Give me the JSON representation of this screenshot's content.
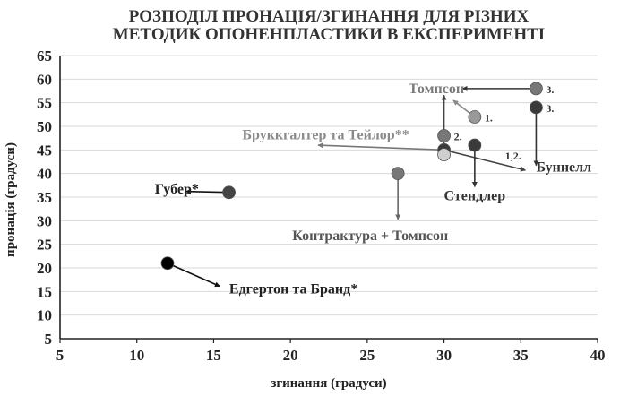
{
  "chart_data": {
    "type": "scatter",
    "title": [
      "РОЗПОДІЛ ПРОНАЦІЯ/ЗГИНАННЯ ДЛЯ РІЗНИХ",
      "МЕТОДИК ОПОНЕНПЛАСТИКИ В ЕКСПЕРИМЕНТІ"
    ],
    "xlabel": "згинання (градуси)",
    "ylabel": "пронація (градуси)",
    "xlim": [
      5,
      40
    ],
    "ylim": [
      5,
      65
    ],
    "xticks": [
      5,
      10,
      15,
      20,
      25,
      30,
      35,
      40
    ],
    "yticks": [
      5,
      10,
      15,
      20,
      25,
      30,
      35,
      40,
      45,
      50,
      55,
      60,
      65
    ],
    "grid": "horizontal",
    "legend": "none",
    "points": [
      {
        "x": 12,
        "y": 21,
        "color": "#000000",
        "label": ""
      },
      {
        "x": 16,
        "y": 36,
        "color": "#444444",
        "label": ""
      },
      {
        "x": 27,
        "y": 40,
        "color": "#777777",
        "label": ""
      },
      {
        "x": 30,
        "y": 48,
        "color": "#777777",
        "label": "2."
      },
      {
        "x": 30,
        "y": 45,
        "color": "#3a3a3a",
        "label": ""
      },
      {
        "x": 30,
        "y": 44,
        "color": "#cfcfcf",
        "label": ""
      },
      {
        "x": 32,
        "y": 52,
        "color": "#999999",
        "label": "1."
      },
      {
        "x": 32,
        "y": 46,
        "color": "#3a3a3a",
        "label": ""
      },
      {
        "x": 36,
        "y": 58,
        "color": "#777777",
        "label": "3."
      },
      {
        "x": 36,
        "y": 54,
        "color": "#3a3a3a",
        "label": "3."
      }
    ],
    "annotations": [
      {
        "text": "Томпсон",
        "color": "#7a7a7a",
        "x": 29.5,
        "y": 57
      },
      {
        "text": "Бруккгалтер та Тейлор**",
        "color": "#8a8a8a",
        "x": 22.3,
        "y": 47.2
      },
      {
        "text": "Буннелл",
        "color": "#333333",
        "x": 37.8,
        "y": 40.4
      },
      {
        "text": "Стендлер",
        "color": "#333333",
        "x": 32,
        "y": 34.3
      },
      {
        "text": "Губер*",
        "color": "#222222",
        "x": 12.6,
        "y": 35.8
      },
      {
        "text": "Контрактура + Томпсон",
        "color": "#555555",
        "x": 25.2,
        "y": 25.9
      },
      {
        "text": "Едгертон та Бранд*",
        "color": "#222222",
        "x": 20.2,
        "y": 14.6
      },
      {
        "text": "1,2.",
        "color": "#333333",
        "x": 34.5,
        "y": 43
      }
    ],
    "arrows": [
      {
        "from": [
          36,
          58
        ],
        "to": [
          31.2,
          58
        ],
        "color": "#333333"
      },
      {
        "from": [
          30,
          46.3
        ],
        "to": [
          30,
          56.6
        ],
        "color": "#444444"
      },
      {
        "from": [
          32,
          52
        ],
        "to": [
          30.6,
          55.5
        ],
        "color": "#888888"
      },
      {
        "from": [
          36,
          54
        ],
        "to": [
          36,
          41.7
        ],
        "color": "#333333"
      },
      {
        "from": [
          30,
          45
        ],
        "to": [
          35.3,
          40.7
        ],
        "color": "#444444"
      },
      {
        "from": [
          30,
          45
        ],
        "to": [
          21.8,
          46
        ],
        "color": "#777777"
      },
      {
        "from": [
          32,
          46
        ],
        "to": [
          32,
          37.2
        ],
        "color": "#333333"
      },
      {
        "from": [
          16,
          36
        ],
        "to": [
          13.2,
          36.2
        ],
        "color": "#111111"
      },
      {
        "from": [
          27,
          40
        ],
        "to": [
          27,
          30.3
        ],
        "color": "#666666"
      },
      {
        "from": [
          12,
          21
        ],
        "to": [
          15.4,
          16.1
        ],
        "color": "#111111"
      }
    ]
  }
}
